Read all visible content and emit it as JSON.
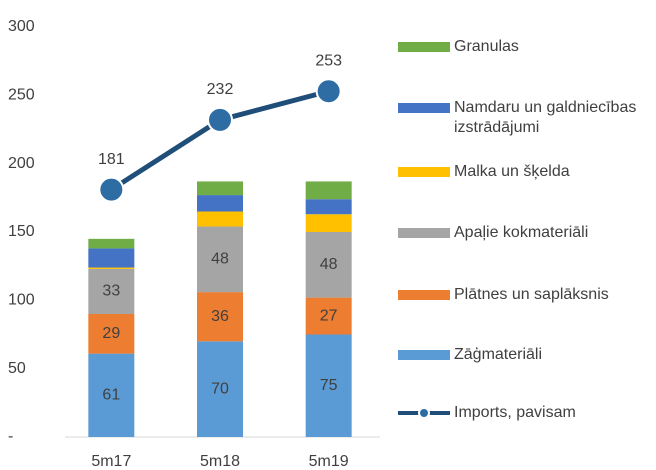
{
  "chart_data": {
    "type": "bar",
    "stacked": true,
    "categories": [
      "5m17",
      "5m18",
      "5m19"
    ],
    "ylim": [
      0,
      300
    ],
    "yticks": [
      {
        "value": 0,
        "label": "-"
      },
      50,
      100,
      150,
      200,
      250,
      300
    ],
    "series": [
      {
        "name": "Zāģmateriāli",
        "color": "#5b9bd5",
        "values": [
          61,
          70,
          75
        ],
        "show_labels": true
      },
      {
        "name": "Plātnes un saplāksnis",
        "color": "#ed7d31",
        "values": [
          29,
          36,
          27
        ],
        "show_labels": true
      },
      {
        "name": "Apaļie kokmateriāli",
        "color": "#a5a5a5",
        "values": [
          33,
          48,
          48
        ],
        "show_labels": true
      },
      {
        "name": "Malka un šķelda",
        "color": "#ffc000",
        "values": [
          1,
          11,
          13
        ],
        "show_labels": false
      },
      {
        "name": "Namdaru un galdniecības izstrādājumi",
        "color": "#4472c4",
        "values": [
          14,
          12,
          11
        ],
        "show_labels": false
      },
      {
        "name": "Granulas",
        "color": "#70ad47",
        "values": [
          7,
          10,
          13
        ],
        "show_labels": false
      },
      {
        "name": "Imports, pavisam",
        "color": "#1f4e79",
        "type": "line",
        "values": [
          181,
          232,
          253
        ],
        "show_labels": true
      }
    ],
    "legend": "right"
  }
}
